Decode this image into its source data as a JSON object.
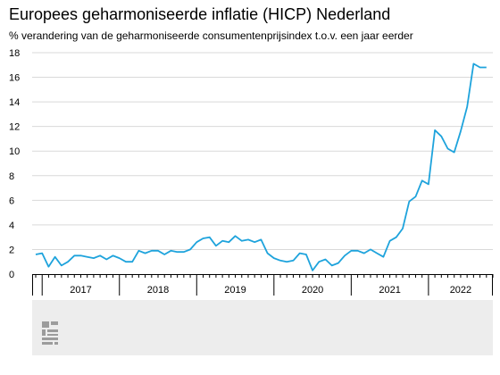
{
  "chart_data": {
    "type": "line",
    "title": "Europees geharmoniseerde inflatie (HICP) Nederland",
    "subtitle": "% verandering van de geharmoniseerde consumentenprijsindex t.o.v. een jaar eerder",
    "xlabel": "",
    "ylabel": "",
    "ylim": [
      0,
      18
    ],
    "yticks": [
      0,
      2,
      4,
      6,
      8,
      10,
      12,
      14,
      16,
      18
    ],
    "x_categories": [
      "2017",
      "2018",
      "2019",
      "2020",
      "2021",
      "2022"
    ],
    "x": [
      "2016-12",
      "2017-01",
      "2017-02",
      "2017-03",
      "2017-04",
      "2017-05",
      "2017-06",
      "2017-07",
      "2017-08",
      "2017-09",
      "2017-10",
      "2017-11",
      "2017-12",
      "2018-01",
      "2018-02",
      "2018-03",
      "2018-04",
      "2018-05",
      "2018-06",
      "2018-07",
      "2018-08",
      "2018-09",
      "2018-10",
      "2018-11",
      "2018-12",
      "2019-01",
      "2019-02",
      "2019-03",
      "2019-04",
      "2019-05",
      "2019-06",
      "2019-07",
      "2019-08",
      "2019-09",
      "2019-10",
      "2019-11",
      "2019-12",
      "2020-01",
      "2020-02",
      "2020-03",
      "2020-04",
      "2020-05",
      "2020-06",
      "2020-07",
      "2020-08",
      "2020-09",
      "2020-10",
      "2020-11",
      "2020-12",
      "2021-01",
      "2021-02",
      "2021-03",
      "2021-04",
      "2021-05",
      "2021-06",
      "2021-07",
      "2021-08",
      "2021-09",
      "2021-10",
      "2021-11",
      "2021-12",
      "2022-01",
      "2022-02",
      "2022-03",
      "2022-04",
      "2022-05",
      "2022-06",
      "2022-07",
      "2022-08",
      "2022-09",
      "2022-10"
    ],
    "series": [
      {
        "name": "",
        "color": "#1ea3dc",
        "values": [
          1.6,
          1.7,
          0.6,
          1.4,
          0.7,
          1.0,
          1.5,
          1.5,
          1.4,
          1.3,
          1.5,
          1.2,
          1.5,
          1.3,
          1.0,
          1.0,
          1.9,
          1.7,
          1.9,
          1.9,
          1.6,
          1.9,
          1.8,
          1.8,
          2.0,
          2.6,
          2.9,
          3.0,
          2.3,
          2.7,
          2.6,
          3.1,
          2.7,
          2.8,
          2.6,
          2.8,
          1.7,
          1.3,
          1.1,
          1.0,
          1.1,
          1.7,
          1.6,
          0.3,
          1.0,
          1.2,
          0.7,
          0.9,
          1.5,
          1.9,
          1.9,
          1.7,
          2.0,
          1.7,
          1.4,
          2.7,
          3.0,
          3.7,
          5.9,
          6.3,
          7.6,
          7.3,
          11.7,
          11.2,
          10.2,
          9.9,
          11.6,
          13.6,
          17.1,
          16.8,
          16.8
        ]
      }
    ],
    "grid": true,
    "legend": "none"
  },
  "colors": {
    "line": "#1ea3dc",
    "grid": "#d9d9d9",
    "axis": "#000000",
    "footer_background": "#ededed",
    "logo": "#9c9c9c"
  },
  "logo": {
    "name": "cbs-logo",
    "text": "cbs"
  }
}
